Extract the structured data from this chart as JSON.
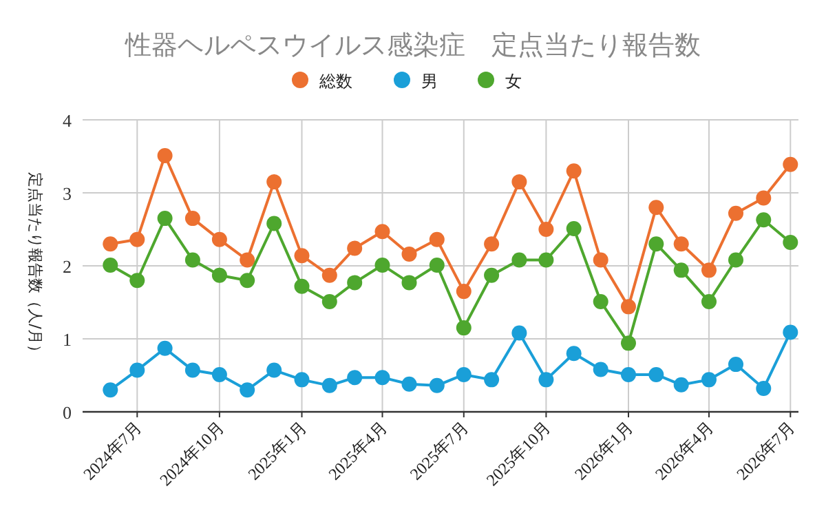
{
  "chart_data": {
    "type": "line",
    "title": "性器ヘルペスウイルス感染症　定点当たり報告数",
    "ylabel": "定点当たり報告数（人/月）",
    "x": [
      "2024-06",
      "2024-07",
      "2024-08",
      "2024-09",
      "2024-10",
      "2024-11",
      "2024-12",
      "2025-01",
      "2025-02",
      "2025-03",
      "2025-04",
      "2025-05",
      "2025-06",
      "2025-07",
      "2025-08",
      "2025-09",
      "2025-10",
      "2025-11",
      "2025-12",
      "2026-01",
      "2026-02",
      "2026-03",
      "2026-04",
      "2026-05",
      "2026-06",
      "2026-07"
    ],
    "series": [
      {
        "name": "総数",
        "color": "#ec7030",
        "values": [
          2.3,
          2.36,
          3.51,
          2.65,
          2.36,
          2.08,
          3.15,
          2.14,
          1.87,
          2.24,
          2.47,
          2.16,
          2.36,
          1.65,
          2.3,
          3.15,
          2.5,
          3.3,
          2.08,
          1.44,
          2.8,
          2.3,
          1.94,
          2.72,
          2.93,
          3.39
        ]
      },
      {
        "name": "男",
        "color": "#1a9fd8",
        "values": [
          0.3,
          0.57,
          0.87,
          0.57,
          0.51,
          0.3,
          0.57,
          0.44,
          0.36,
          0.47,
          0.47,
          0.38,
          0.36,
          0.51,
          0.44,
          1.08,
          0.44,
          0.8,
          0.58,
          0.51,
          0.51,
          0.37,
          0.44,
          0.65,
          0.32,
          1.09
        ]
      },
      {
        "name": "女",
        "color": "#4ea72e",
        "values": [
          2.01,
          1.8,
          2.65,
          2.08,
          1.87,
          1.8,
          2.58,
          1.72,
          1.51,
          1.77,
          2.01,
          1.77,
          2.01,
          1.15,
          1.87,
          2.08,
          2.08,
          2.51,
          1.51,
          0.94,
          2.3,
          1.94,
          1.51,
          2.08,
          2.63,
          2.32
        ]
      }
    ],
    "xlim": [
      "2024-05",
      "2026-07-10"
    ],
    "xticks": [
      {
        "value": "2024-07",
        "label": "2024年7月"
      },
      {
        "value": "2024-10",
        "label": "2024年10月"
      },
      {
        "value": "2025-01",
        "label": "2025年1月"
      },
      {
        "value": "2025-04",
        "label": "2025年4月"
      },
      {
        "value": "2025-07",
        "label": "2025年7月"
      },
      {
        "value": "2025-10",
        "label": "2025年10月"
      },
      {
        "value": "2026-01",
        "label": "2026年1月"
      },
      {
        "value": "2026-04",
        "label": "2026年4月"
      },
      {
        "value": "2026-07",
        "label": "2026年7月"
      }
    ],
    "ylim": [
      0,
      4
    ],
    "yticks": [
      0,
      1,
      2,
      3,
      4
    ],
    "grid": true,
    "legend": "top",
    "marker": "circle",
    "line_style": "solid"
  }
}
